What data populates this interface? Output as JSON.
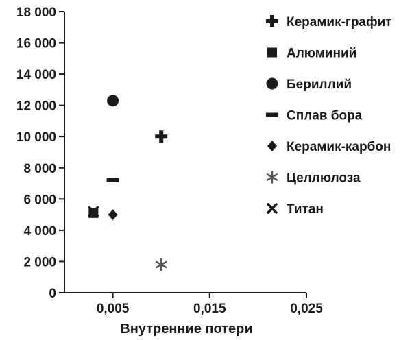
{
  "chart_data": {
    "type": "scatter",
    "title": "",
    "xlabel": "Внутренние потери",
    "ylabel": "",
    "xlim": [
      0,
      0.025
    ],
    "ylim": [
      0,
      18000
    ],
    "x_ticks": [
      0.005,
      0.015,
      0.025
    ],
    "x_tick_labels": [
      "0,005",
      "0,015",
      "0,025"
    ],
    "y_ticks": [
      0,
      2000,
      4000,
      6000,
      8000,
      10000,
      12000,
      14000,
      16000,
      18000
    ],
    "y_tick_labels": [
      "0",
      "2 000",
      "4 000",
      "6 000",
      "8 000",
      "10 000",
      "12 000",
      "14 000",
      "16 000",
      "18 000"
    ],
    "grid": false,
    "legend_position": "right",
    "series": [
      {
        "name": "Керамик-графит",
        "marker": "plus",
        "color": "#1a1a1a",
        "points": [
          {
            "x": 0.01,
            "y": 10000
          }
        ]
      },
      {
        "name": "Алюминий",
        "marker": "square",
        "color": "#1a1a1a",
        "points": [
          {
            "x": 0.003,
            "y": 5100
          }
        ]
      },
      {
        "name": "Бериллий",
        "marker": "circle",
        "color": "#1a1a1a",
        "points": [
          {
            "x": 0.005,
            "y": 12300
          }
        ]
      },
      {
        "name": "Сплав бора",
        "marker": "dash",
        "color": "#1a1a1a",
        "points": [
          {
            "x": 0.005,
            "y": 7200
          }
        ]
      },
      {
        "name": "Керамик-карбон",
        "marker": "diamond",
        "color": "#1a1a1a",
        "points": [
          {
            "x": 0.005,
            "y": 5000
          }
        ]
      },
      {
        "name": "Целлюлоза",
        "marker": "asterisk",
        "color": "#555555",
        "points": [
          {
            "x": 0.01,
            "y": 1800
          }
        ]
      },
      {
        "name": "Титан",
        "marker": "cross",
        "color": "#1a1a1a",
        "points": [
          {
            "x": 0.003,
            "y": 5200
          }
        ]
      }
    ]
  }
}
